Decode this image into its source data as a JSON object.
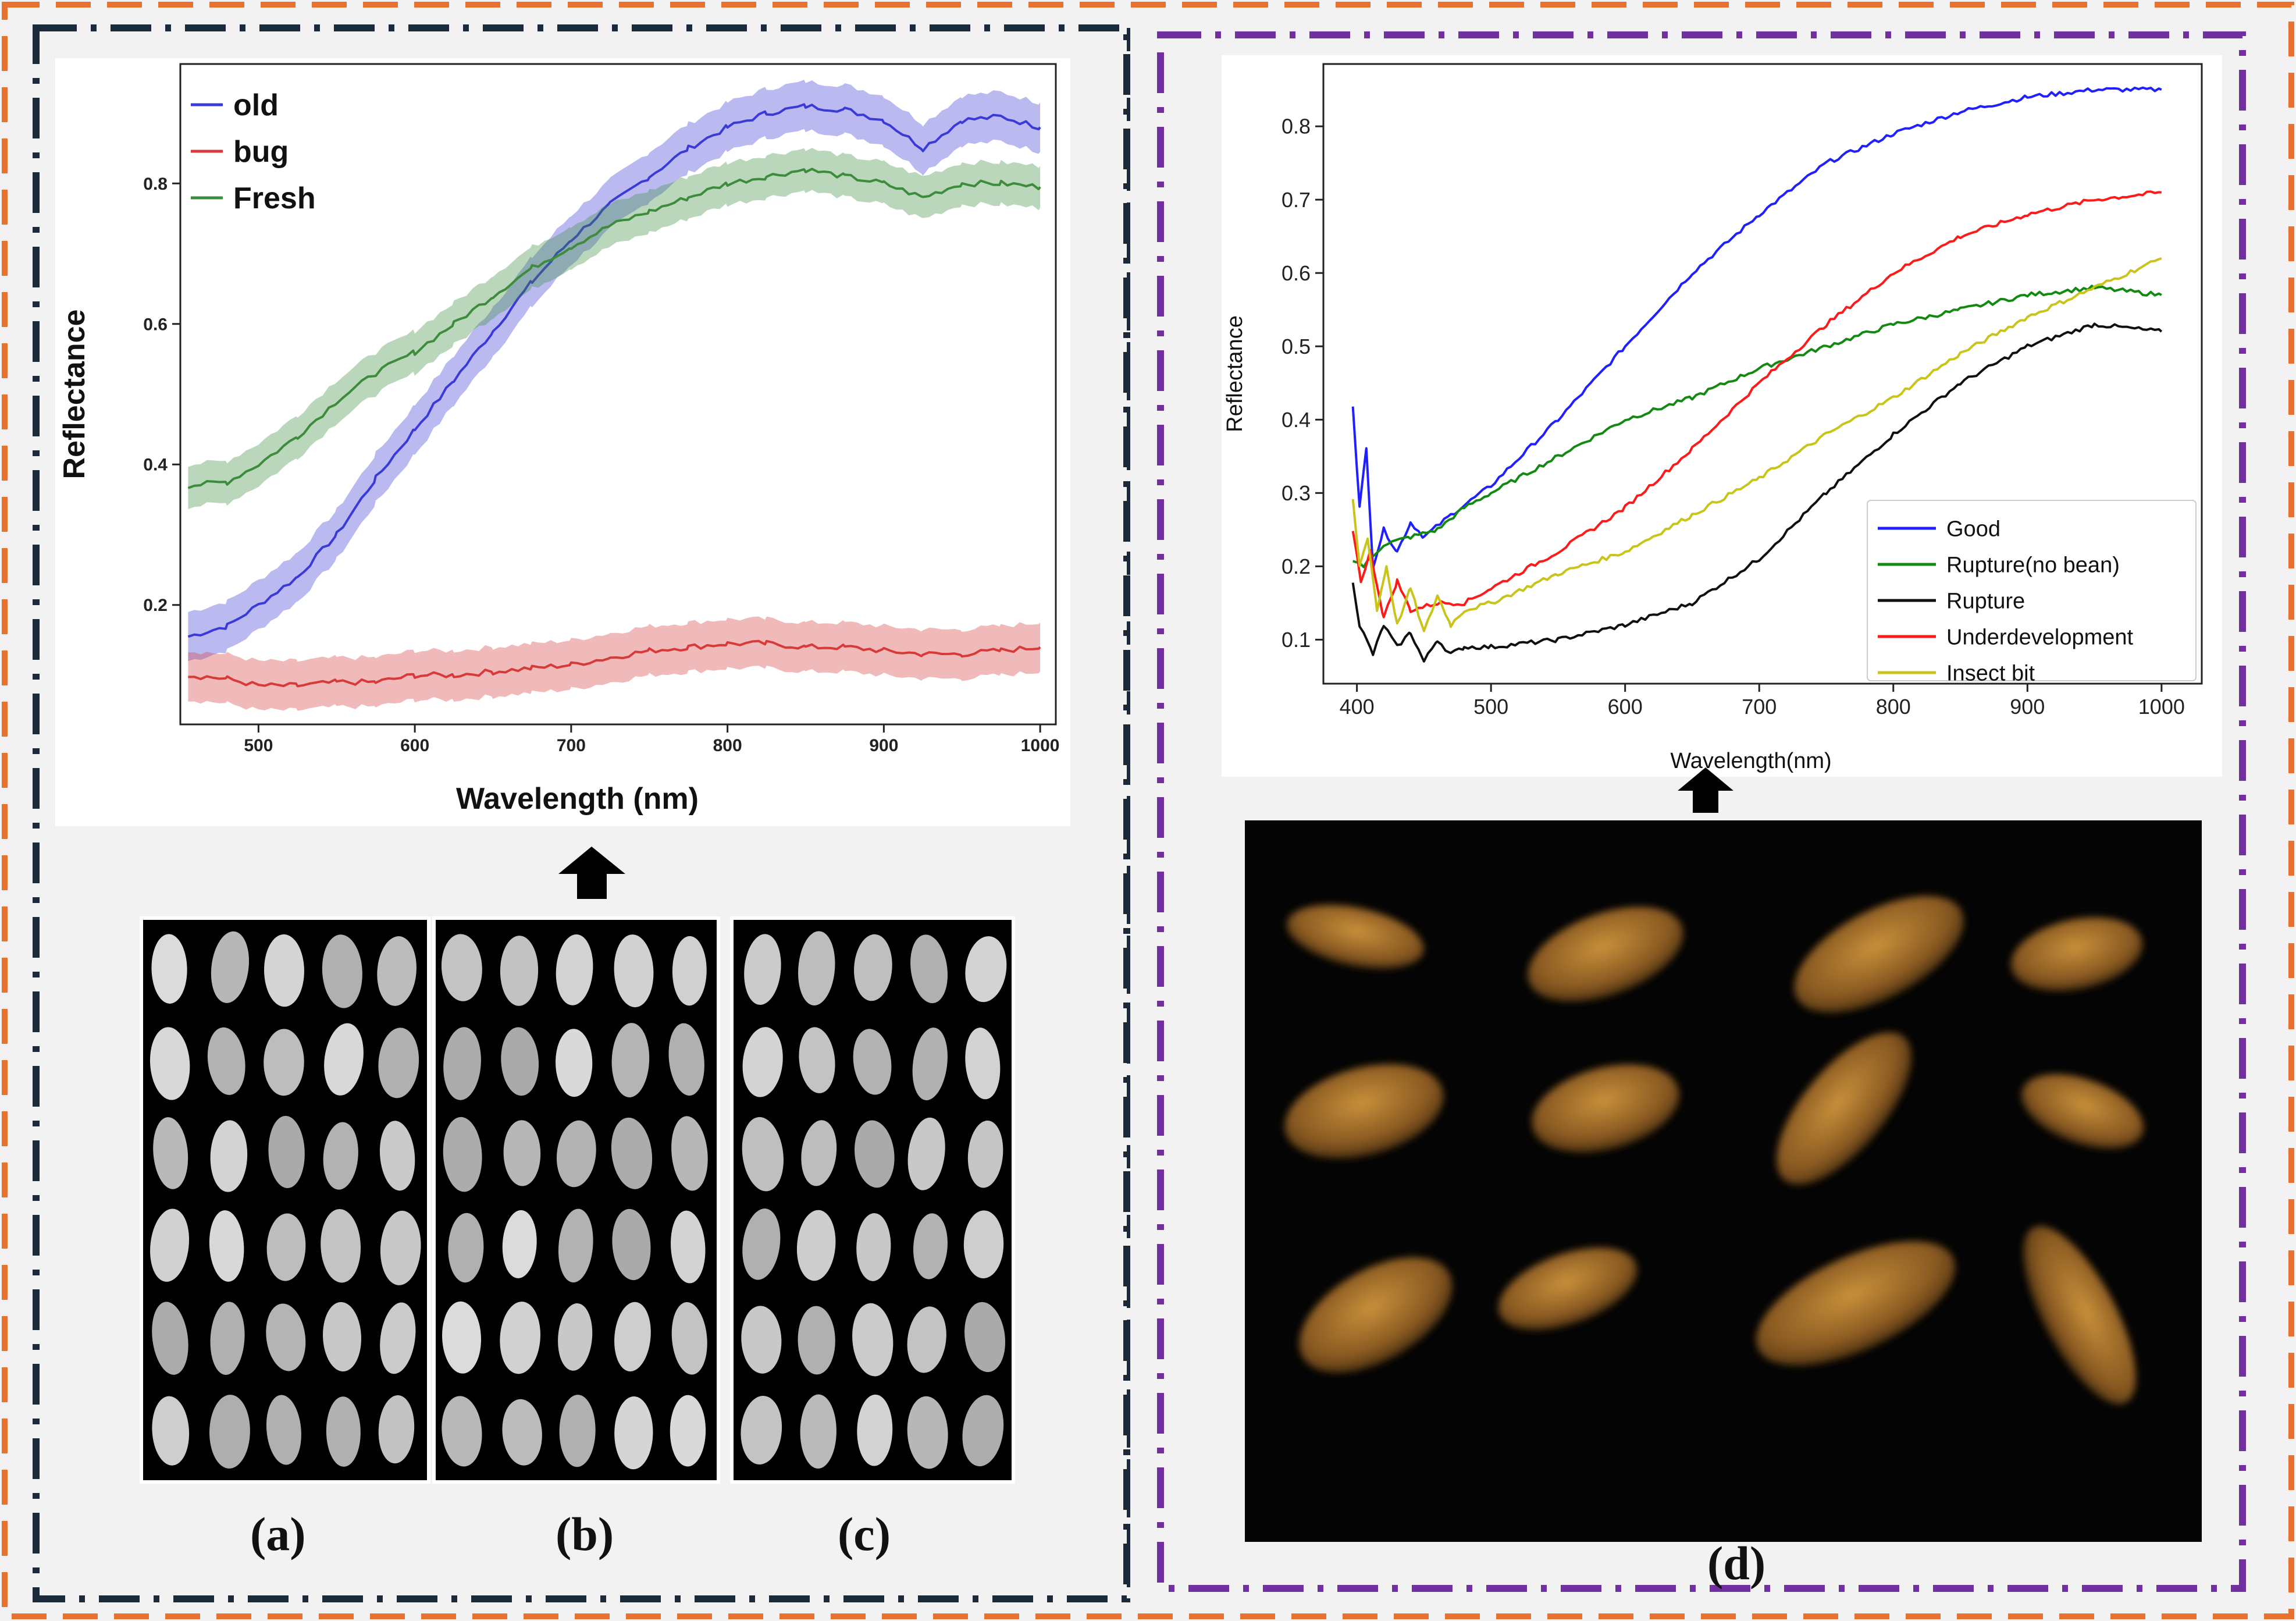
{
  "colors": {
    "outer_border": "#e87230",
    "left_border": "#1a2a3a",
    "right_border": "#7030a0",
    "old": "#3a3ad8",
    "bug": "#d83a3a",
    "fresh": "#3c8c3c",
    "good": "#1f1fff",
    "rupture_no_bean": "#128a12",
    "rupture": "#101010",
    "underdevelopment": "#ff1a1a",
    "insect_bit": "#c8c41a"
  },
  "panel_labels": {
    "a": "(a)",
    "b": "(b)",
    "c": "(c)",
    "d": "(d)"
  },
  "icons": {
    "arrow_left": "up-arrow-icon",
    "arrow_right": "up-arrow-icon"
  },
  "chart_data": [
    {
      "type": "line",
      "xlabel": "Wavelength (nm)",
      "ylabel": "Reflectance",
      "xlim": [
        450,
        1010
      ],
      "ylim": [
        0.03,
        0.97
      ],
      "xticks": [
        "500",
        "600",
        "700",
        "800",
        "900",
        "1000"
      ],
      "yticks": [
        "0.2",
        "0.4",
        "0.6",
        "0.8"
      ],
      "legend_position": "top-left",
      "shaded_band": true,
      "series": [
        {
          "name": "old",
          "color_key": "old",
          "band": 0.035,
          "x": [
            455,
            480,
            500,
            525,
            550,
            575,
            600,
            625,
            650,
            675,
            700,
            725,
            750,
            775,
            800,
            825,
            850,
            875,
            900,
            925,
            950,
            975,
            1000
          ],
          "y": [
            0.155,
            0.17,
            0.2,
            0.24,
            0.3,
            0.38,
            0.45,
            0.52,
            0.59,
            0.66,
            0.72,
            0.77,
            0.81,
            0.85,
            0.88,
            0.9,
            0.91,
            0.905,
            0.89,
            0.85,
            0.89,
            0.895,
            0.88
          ]
        },
        {
          "name": "bug",
          "color_key": "bug",
          "band": 0.035,
          "x": [
            455,
            480,
            500,
            525,
            550,
            575,
            600,
            625,
            650,
            675,
            700,
            725,
            750,
            775,
            800,
            825,
            850,
            875,
            900,
            925,
            950,
            975,
            1000
          ],
          "y": [
            0.1,
            0.095,
            0.085,
            0.085,
            0.09,
            0.09,
            0.1,
            0.1,
            0.105,
            0.11,
            0.115,
            0.125,
            0.135,
            0.14,
            0.145,
            0.145,
            0.14,
            0.14,
            0.135,
            0.13,
            0.13,
            0.135,
            0.14
          ]
        },
        {
          "name": "Fresh",
          "color_key": "fresh",
          "band": 0.03,
          "x": [
            455,
            480,
            500,
            525,
            550,
            575,
            600,
            625,
            650,
            675,
            700,
            725,
            750,
            775,
            800,
            825,
            850,
            875,
            900,
            925,
            950,
            975,
            1000
          ],
          "y": [
            0.37,
            0.375,
            0.4,
            0.44,
            0.49,
            0.53,
            0.56,
            0.6,
            0.64,
            0.68,
            0.71,
            0.74,
            0.76,
            0.78,
            0.8,
            0.81,
            0.82,
            0.81,
            0.8,
            0.78,
            0.8,
            0.8,
            0.795
          ]
        }
      ]
    },
    {
      "type": "line",
      "xlabel": "Wavelength(nm)",
      "ylabel": "Reflectance",
      "xlim": [
        375,
        1030
      ],
      "ylim": [
        0.04,
        0.885
      ],
      "xticks": [
        "400",
        "500",
        "600",
        "700",
        "800",
        "900",
        "1000"
      ],
      "yticks": [
        "0.1",
        "0.2",
        "0.3",
        "0.4",
        "0.5",
        "0.6",
        "0.7",
        "0.8"
      ],
      "legend_position": "lower-right",
      "series": [
        {
          "name": "Good",
          "color_key": "good",
          "x": [
            397,
            402,
            407,
            412,
            420,
            430,
            440,
            450,
            470,
            500,
            550,
            600,
            650,
            700,
            750,
            800,
            850,
            900,
            950,
            1000
          ],
          "y": [
            0.42,
            0.28,
            0.36,
            0.2,
            0.25,
            0.22,
            0.26,
            0.24,
            0.27,
            0.31,
            0.4,
            0.5,
            0.6,
            0.68,
            0.75,
            0.79,
            0.82,
            0.84,
            0.85,
            0.85
          ]
        },
        {
          "name": "Rupture(no bean)",
          "color_key": "rupture_no_bean",
          "x": [
            397,
            405,
            420,
            440,
            460,
            480,
            500,
            550,
            600,
            650,
            700,
            750,
            800,
            850,
            900,
            950,
            1000
          ],
          "y": [
            0.21,
            0.2,
            0.23,
            0.24,
            0.25,
            0.28,
            0.3,
            0.35,
            0.4,
            0.43,
            0.47,
            0.5,
            0.53,
            0.55,
            0.57,
            0.58,
            0.57
          ]
        },
        {
          "name": "Rupture",
          "color_key": "rupture",
          "x": [
            397,
            402,
            407,
            412,
            420,
            430,
            440,
            450,
            460,
            470,
            480,
            500,
            550,
            600,
            650,
            700,
            750,
            800,
            850,
            900,
            950,
            1000
          ],
          "y": [
            0.18,
            0.12,
            0.1,
            0.08,
            0.12,
            0.09,
            0.11,
            0.07,
            0.1,
            0.08,
            0.09,
            0.09,
            0.1,
            0.12,
            0.15,
            0.21,
            0.3,
            0.38,
            0.45,
            0.5,
            0.53,
            0.52
          ]
        },
        {
          "name": "Underdevelopment",
          "color_key": "underdevelopment",
          "x": [
            397,
            403,
            410,
            420,
            430,
            440,
            460,
            480,
            500,
            550,
            600,
            650,
            700,
            750,
            800,
            850,
            900,
            950,
            1000
          ],
          "y": [
            0.25,
            0.18,
            0.22,
            0.13,
            0.18,
            0.14,
            0.15,
            0.15,
            0.17,
            0.22,
            0.28,
            0.36,
            0.45,
            0.53,
            0.6,
            0.65,
            0.68,
            0.7,
            0.71
          ]
        },
        {
          "name": "Insect bit",
          "color_key": "insect_bit",
          "x": [
            397,
            402,
            408,
            415,
            422,
            430,
            440,
            450,
            460,
            470,
            480,
            500,
            550,
            600,
            650,
            700,
            750,
            800,
            850,
            900,
            950,
            1000
          ],
          "y": [
            0.29,
            0.2,
            0.24,
            0.14,
            0.2,
            0.12,
            0.17,
            0.11,
            0.16,
            0.12,
            0.14,
            0.15,
            0.19,
            0.22,
            0.27,
            0.32,
            0.38,
            0.43,
            0.49,
            0.54,
            0.58,
            0.62
          ]
        }
      ]
    }
  ]
}
